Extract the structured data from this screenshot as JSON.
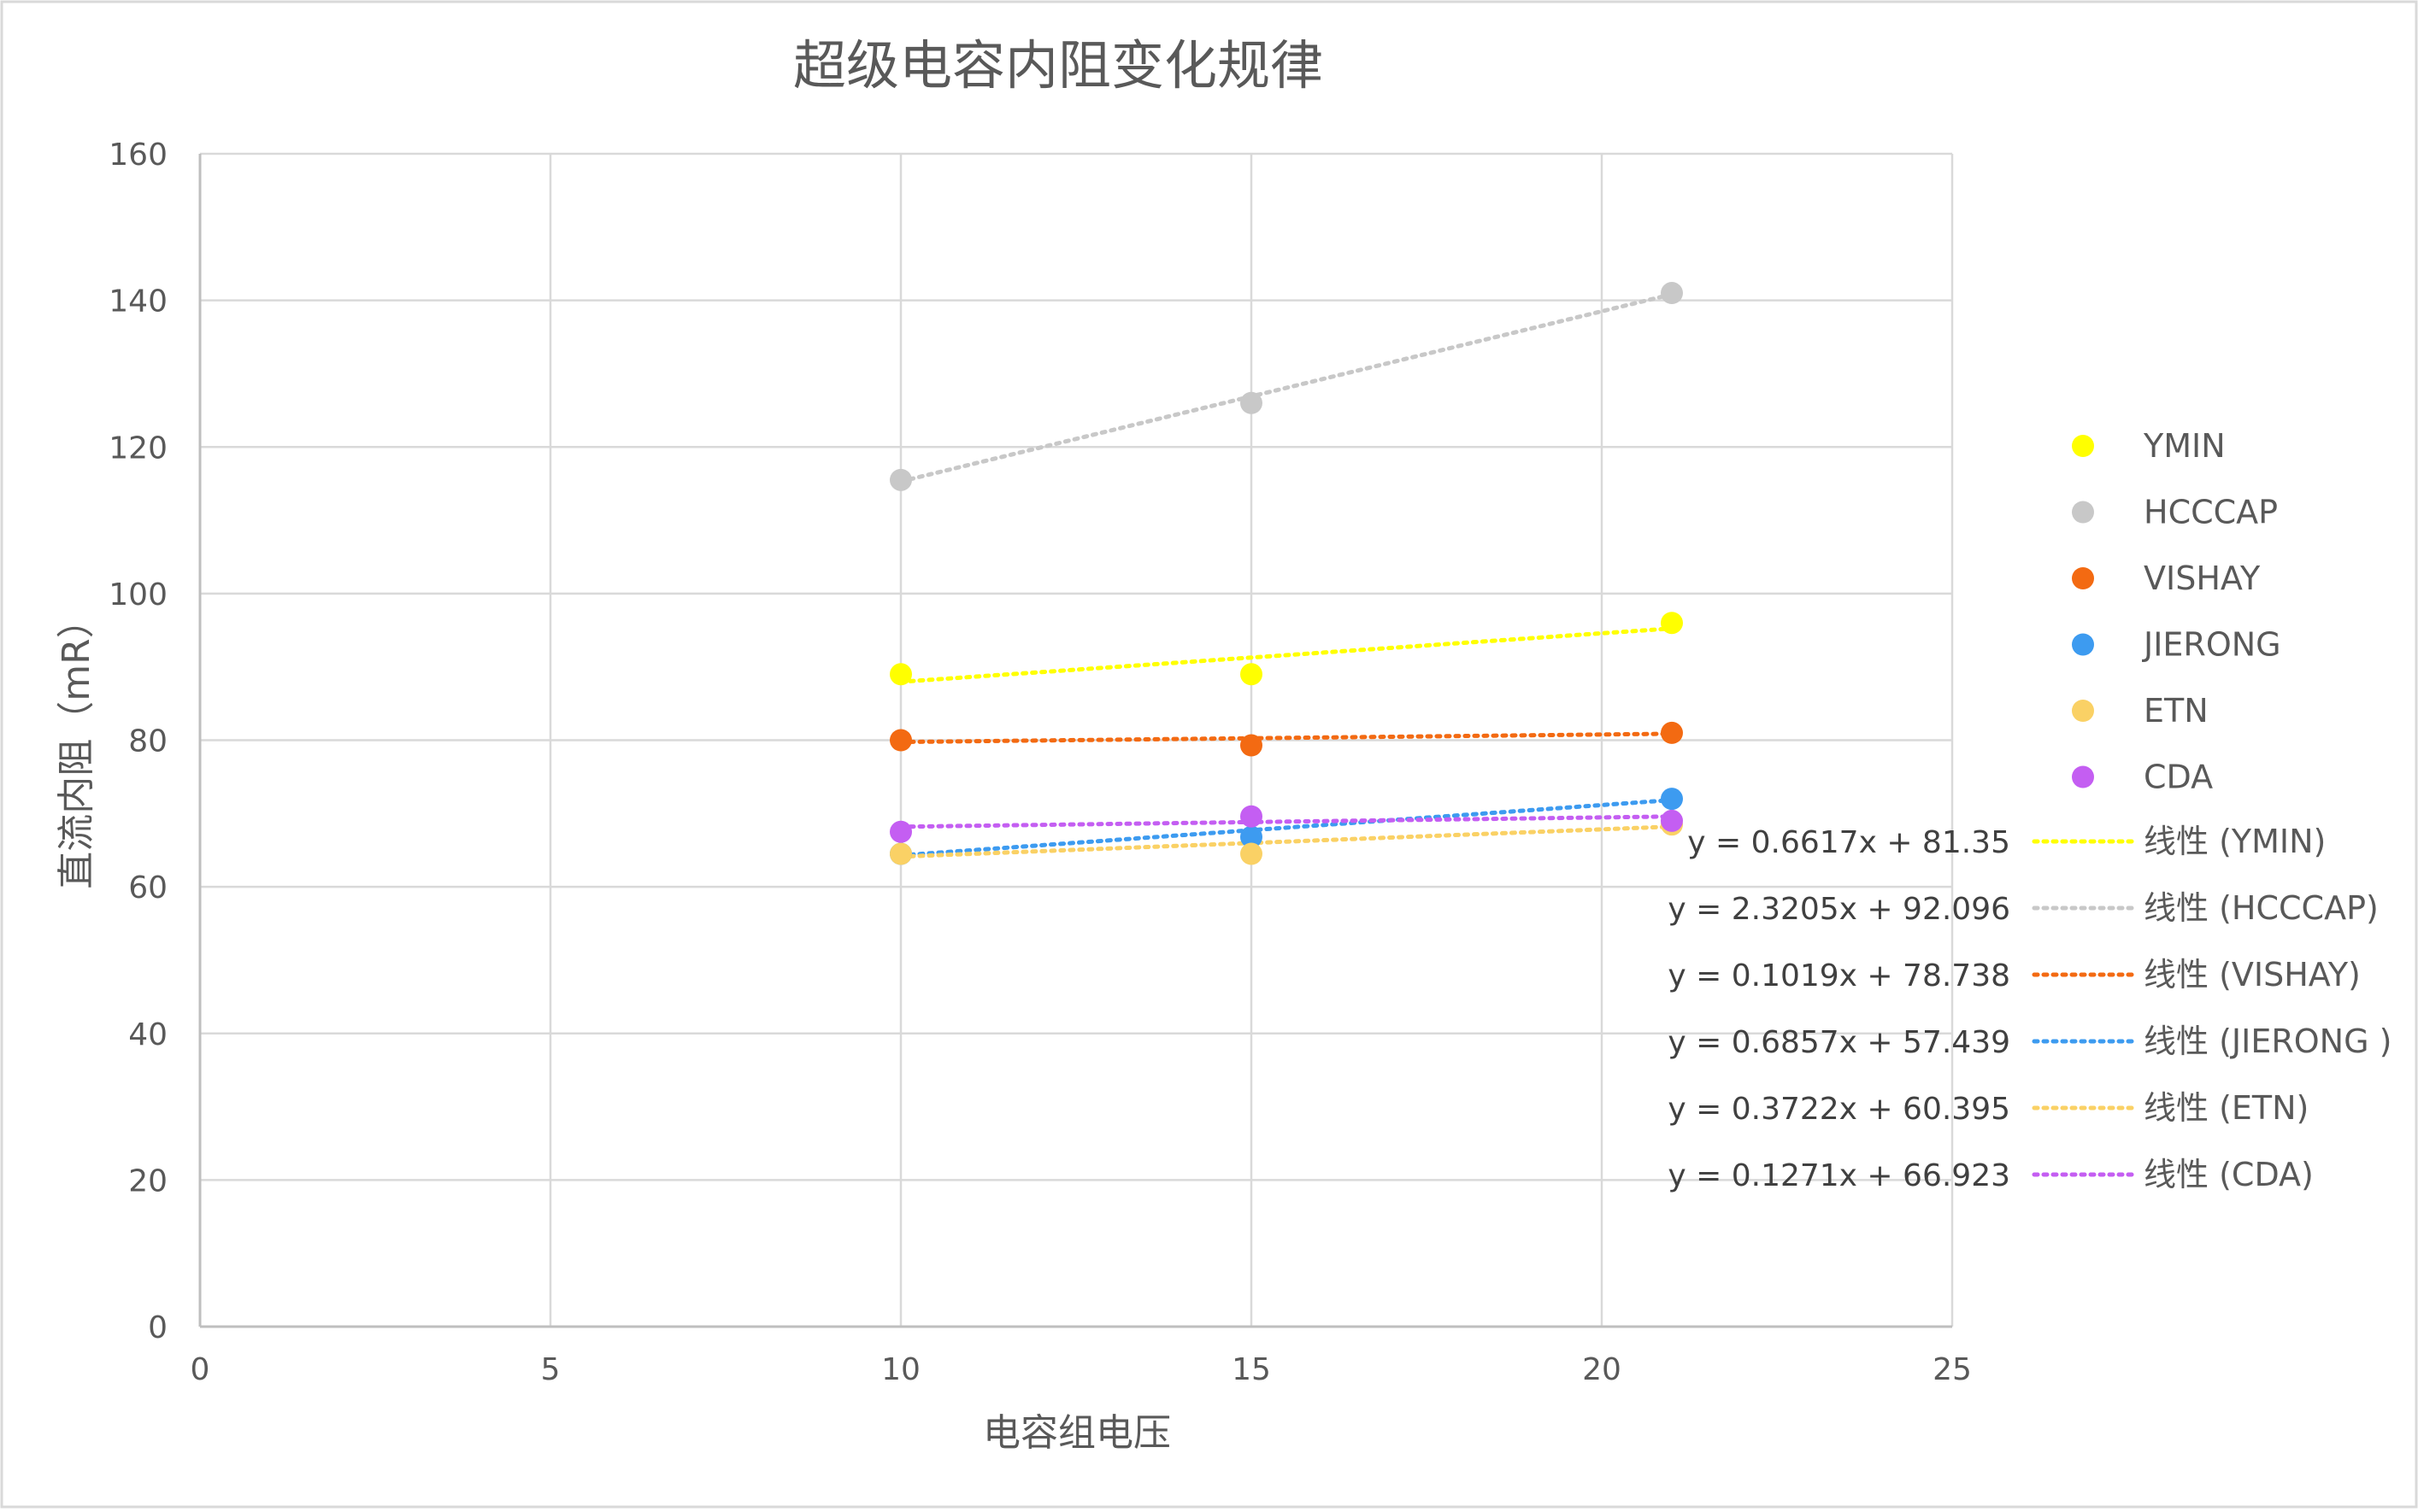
{
  "chart_data": {
    "type": "scatter",
    "title": "超级电容内阻变化规律",
    "xlabel": "电容组电压",
    "ylabel": "直流内阻（mR）",
    "xlim": [
      0,
      25
    ],
    "ylim": [
      0,
      160
    ],
    "x_ticks": [
      "0",
      "5",
      "10",
      "15",
      "20",
      "25"
    ],
    "y_ticks": [
      "0",
      "20",
      "40",
      "60",
      "80",
      "100",
      "120",
      "140",
      "160"
    ],
    "grid": true,
    "legend_position": "right",
    "series": [
      {
        "name": "YMIN",
        "color": "#FFFF00",
        "x": [
          10,
          15,
          21
        ],
        "y": [
          89,
          89,
          96
        ],
        "trend": {
          "label": "线性 (YMIN)",
          "equation": "y = 0.6617x + 81.35",
          "slope": 0.6617,
          "intercept": 81.35
        }
      },
      {
        "name": "HCCCAP",
        "color": "#C8C8C8",
        "x": [
          10,
          15,
          21
        ],
        "y": [
          115.5,
          126,
          141
        ],
        "trend": {
          "label": "线性 (HCCCAP)",
          "equation": "y = 2.3205x + 92.096",
          "slope": 2.3205,
          "intercept": 92.096
        }
      },
      {
        "name": "VISHAY",
        "color": "#F36A12",
        "x": [
          10,
          15,
          21
        ],
        "y": [
          80,
          79.3,
          81
        ],
        "trend": {
          "label": "线性 (VISHAY)",
          "equation": "y = 0.1019x + 78.738",
          "slope": 0.1019,
          "intercept": 78.738
        }
      },
      {
        "name": "JIERONG",
        "color": "#3D9BF0",
        "x": [
          10,
          15,
          21
        ],
        "y": [
          64.5,
          66.8,
          72
        ],
        "trend": {
          "label": "线性 (JIERONG )",
          "equation": "y = 0.6857x + 57.439",
          "slope": 0.6857,
          "intercept": 57.439
        }
      },
      {
        "name": "ETN",
        "color": "#FAD165",
        "x": [
          10,
          15,
          21
        ],
        "y": [
          64.5,
          64.5,
          68.5
        ],
        "trend": {
          "label": "线性 (ETN)",
          "equation": "y = 0.3722x + 60.395",
          "slope": 0.3722,
          "intercept": 60.395
        }
      },
      {
        "name": "CDA",
        "color": "#C45EF2",
        "x": [
          10,
          15,
          21
        ],
        "y": [
          67.5,
          69.6,
          69
        ],
        "trend": {
          "label": "线性 (CDA)",
          "equation": "y = 0.1271x + 66.923",
          "slope": 0.1271,
          "intercept": 66.923
        }
      }
    ]
  }
}
